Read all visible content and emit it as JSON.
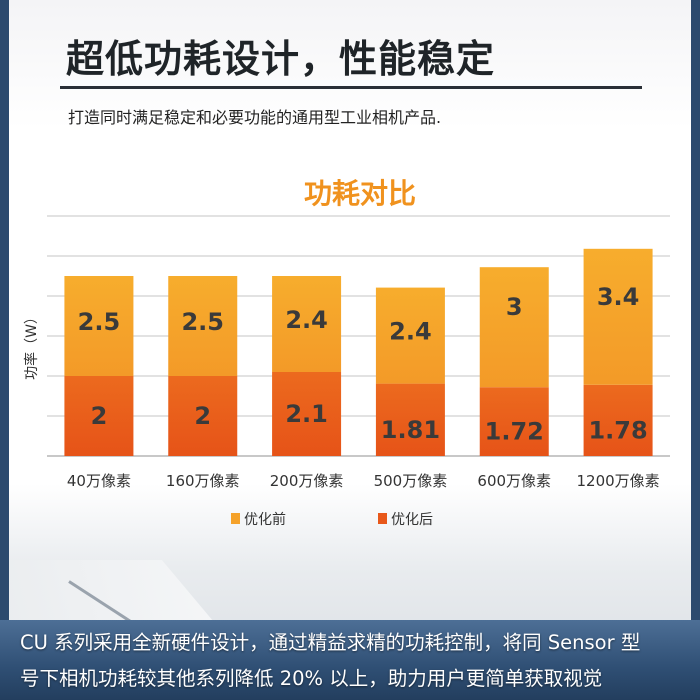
{
  "header": {
    "title": "超低功耗设计，性能稳定",
    "subtitle": "打造同时满足稳定和必要功能的通用型工业相机产品."
  },
  "chart_data": {
    "type": "bar",
    "stacked": true,
    "title": "功耗对比",
    "xlabel": "",
    "ylabel": "功率（W）",
    "ylim": [
      0,
      6
    ],
    "grid": true,
    "legend_position": "bottom",
    "categories": [
      "40万像素",
      "160万像素",
      "200万像素",
      "500万像素",
      "600万像素",
      "1200万像素"
    ],
    "series": [
      {
        "name": "优化后",
        "values": [
          2,
          2,
          2.1,
          1.81,
          1.72,
          1.78
        ],
        "color": "#e8581a"
      },
      {
        "name": "优化前",
        "values": [
          2.5,
          2.5,
          2.4,
          2.4,
          3,
          3.4
        ],
        "color": "#f5a22a"
      }
    ],
    "colors": {
      "title": "#f0921e",
      "label": "#3a3a3a",
      "grid": "#d9d9d9"
    }
  },
  "footer": {
    "line1": "CU 系列采用全新硬件设计，通过精益求精的功耗控制，将同 Sensor 型",
    "line2": "号下相机功耗较其他系列降低 20% 以上，助力用户更简单获取视觉"
  }
}
